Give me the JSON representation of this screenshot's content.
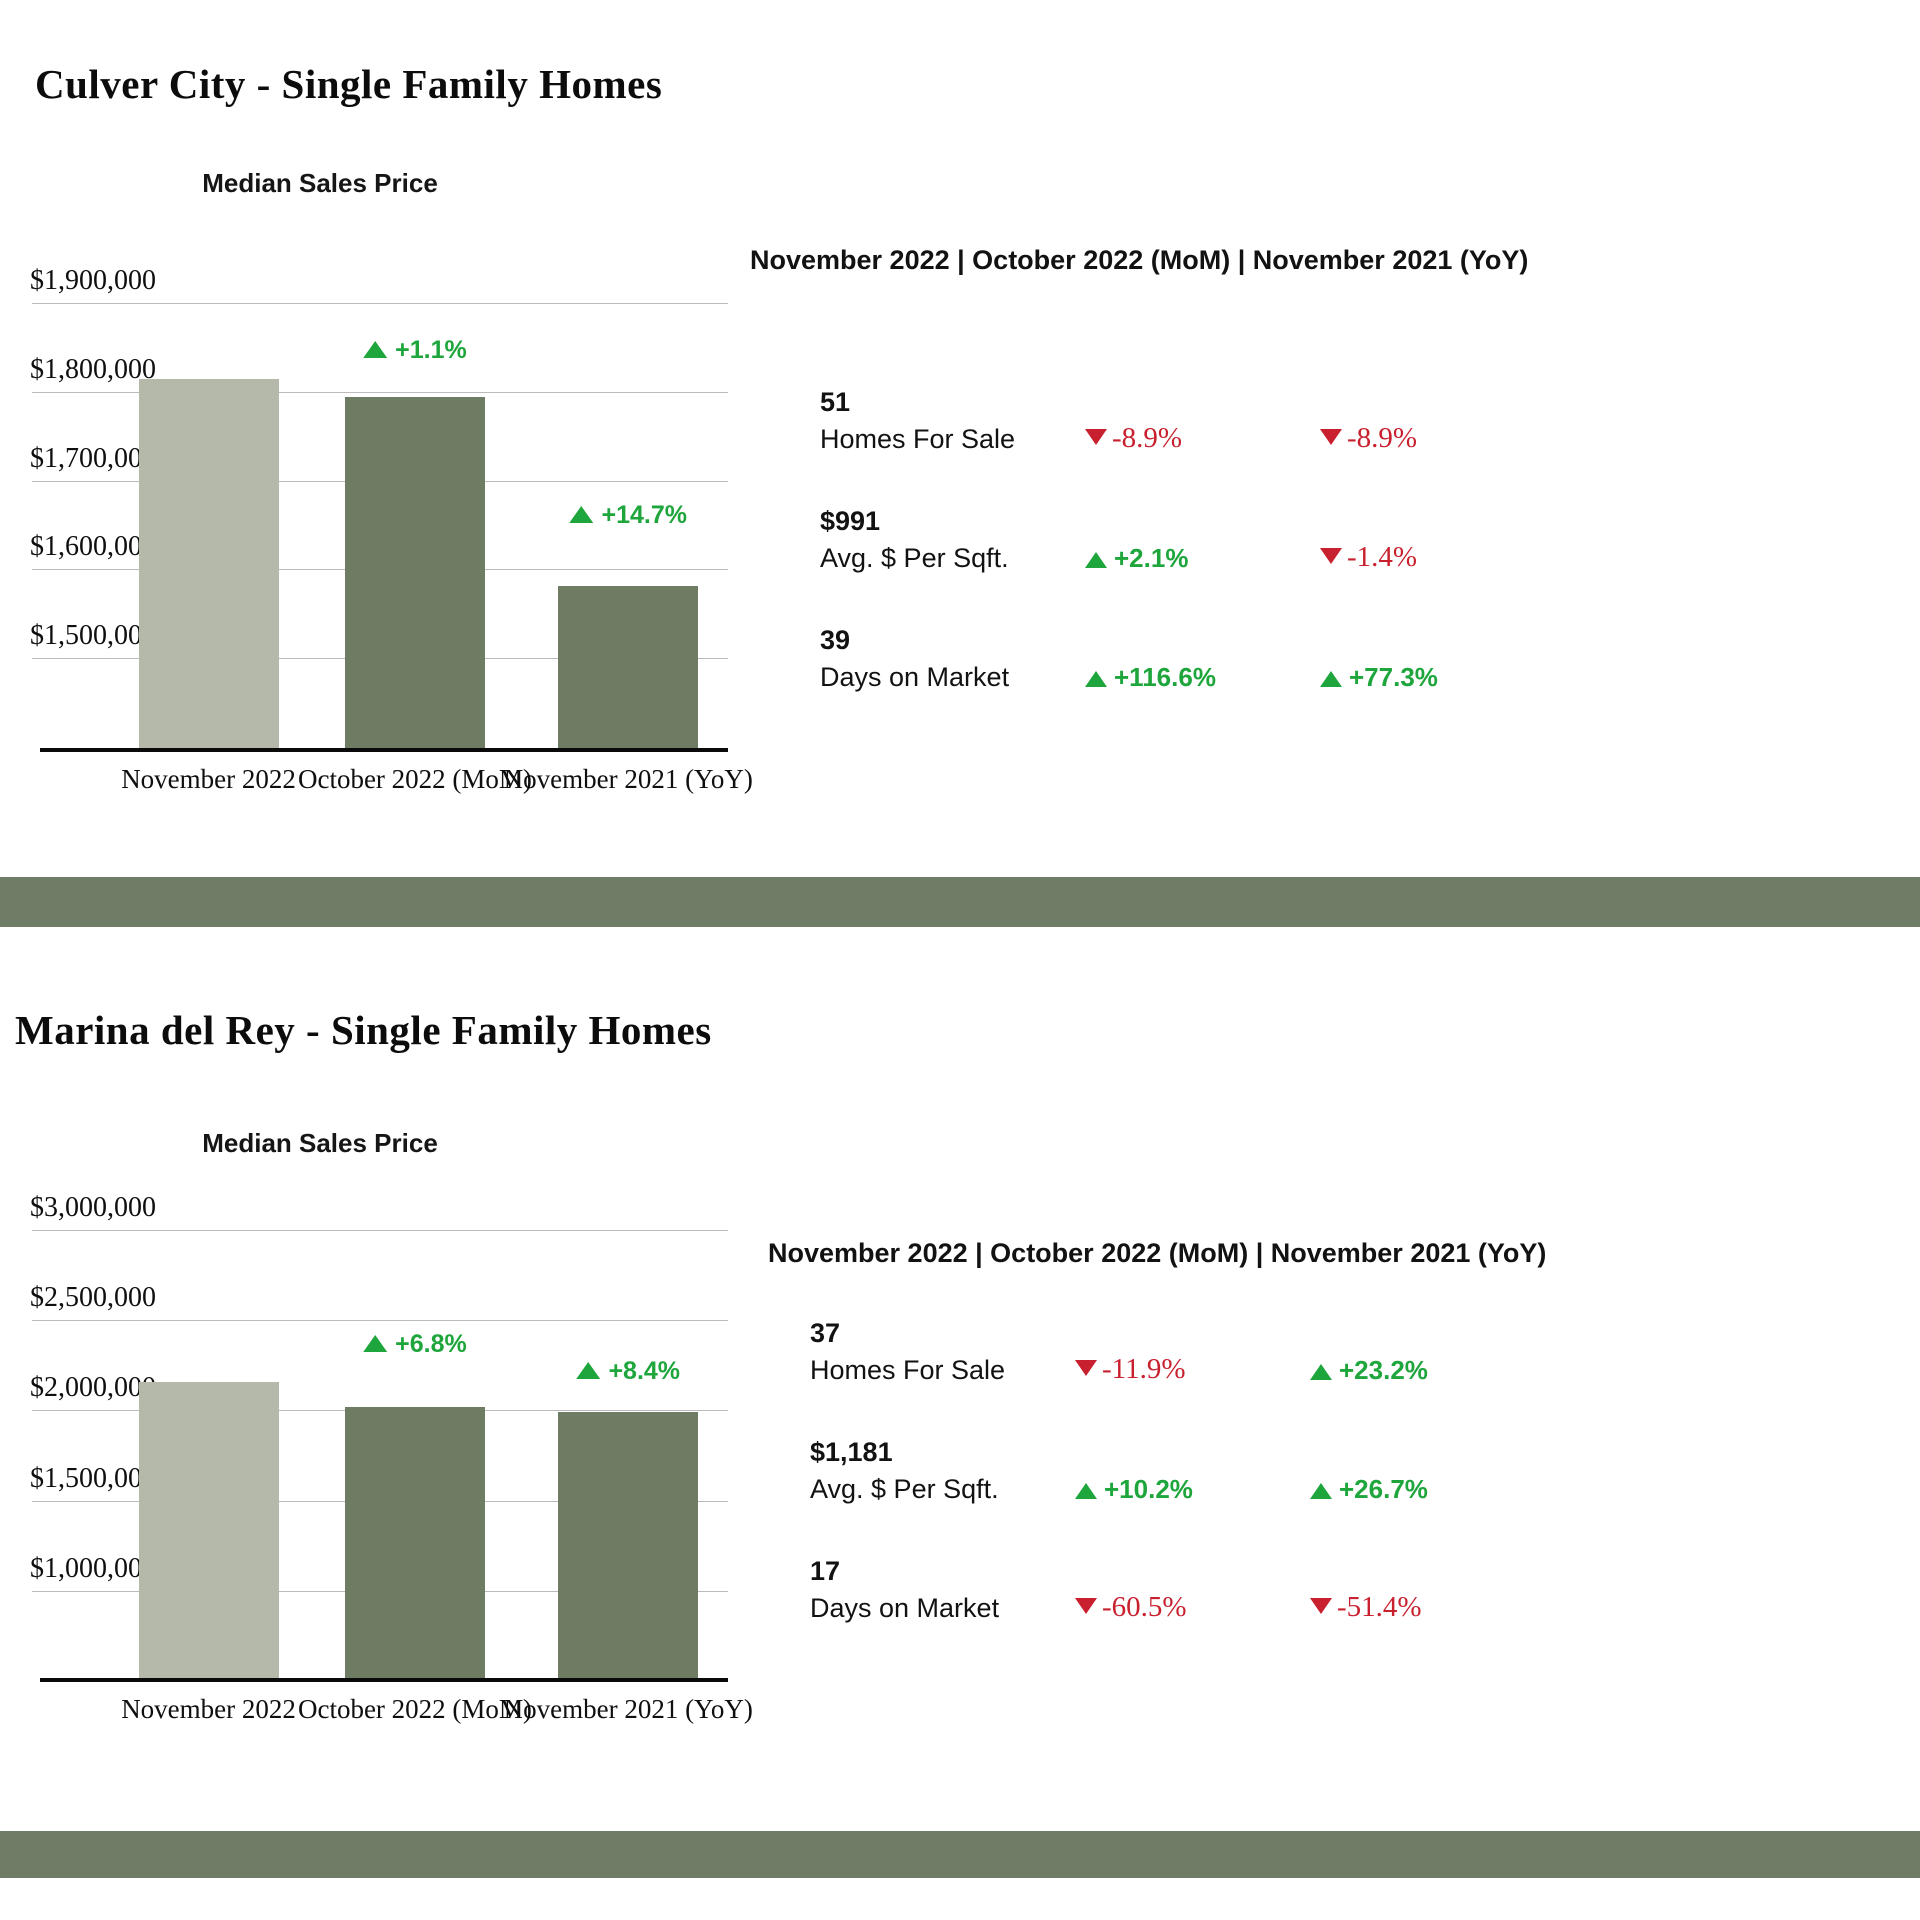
{
  "colors": {
    "accent_band": "#6F7D66",
    "bar_current": "#B5B9A9",
    "bar_compare": "#6F7C64",
    "positive_green": "#1EA63C",
    "negative_red": "#C8202E"
  },
  "chart_data": [
    {
      "type": "bar",
      "title": "Median Sales Price",
      "section": "Culver City - Single Family Homes",
      "categories": [
        "November 2022",
        "October 2022 (MoM)",
        "November 2021 (YoY)"
      ],
      "values": [
        1815000,
        1795000,
        1582500
      ],
      "bar_colors": [
        "#B5B9A9",
        "#6F7C64",
        "#6F7C64"
      ],
      "annotations": [
        null,
        "+1.1%",
        "+14.7%"
      ],
      "annotation_offsets": [
        0,
        34,
        58
      ],
      "ylim": [
        1400000,
        2000000
      ],
      "yticks": [
        {
          "value": 1900000,
          "label": "$1,900,000"
        },
        {
          "value": 1800000,
          "label": "$1,800,000"
        },
        {
          "value": 1700000,
          "label": "$1,700,000"
        },
        {
          "value": 1600000,
          "label": "$1,600,000"
        },
        {
          "value": 1500000,
          "label": "$1,500,000"
        }
      ],
      "grid": true,
      "legend": false
    },
    {
      "type": "bar",
      "title": "Median Sales Price",
      "section": "Marina del Rey - Single Family Homes",
      "categories": [
        "November 2022",
        "October 2022 (MoM)",
        "November 2021 (YoY)"
      ],
      "values": [
        2162500,
        2025000,
        1995000
      ],
      "bar_colors": [
        "#B5B9A9",
        "#6F7C64",
        "#6F7C64"
      ],
      "annotations": [
        null,
        "+6.8%",
        "+8.4%"
      ],
      "annotation_offsets": [
        0,
        50,
        28
      ],
      "ylim": [
        525000,
        3170000
      ],
      "yticks": [
        {
          "value": 3000000,
          "label": "$3,000,000"
        },
        {
          "value": 2500000,
          "label": "$2,500,000"
        },
        {
          "value": 2000000,
          "label": "$2,000,000"
        },
        {
          "value": 1500000,
          "label": "$1,500,000"
        },
        {
          "value": 1000000,
          "label": "$1,000,000"
        }
      ],
      "grid": true,
      "legend": false
    }
  ],
  "sections": [
    {
      "title": "Culver City - Single Family Homes",
      "chart_title": "Median Sales Price",
      "panel": {
        "header": "November 2022 | October 2022 (MoM) | November 2021 (YoY)",
        "rows": [
          {
            "value": "51",
            "label": "Homes For Sale",
            "mom": {
              "text": "-8.9%",
              "dir": "down",
              "tone": "red"
            },
            "yoy": {
              "text": "-8.9%",
              "dir": "down",
              "tone": "red"
            }
          },
          {
            "value": "$991",
            "label": "Avg. $ Per Sqft.",
            "mom": {
              "text": "+2.1%",
              "dir": "up",
              "tone": "green"
            },
            "yoy": {
              "text": "-1.4%",
              "dir": "down",
              "tone": "red"
            }
          },
          {
            "value": "39",
            "label": "Days on Market",
            "mom": {
              "text": "+116.6%",
              "dir": "up",
              "tone": "green"
            },
            "yoy": {
              "text": "+77.3%",
              "dir": "up",
              "tone": "green"
            }
          }
        ]
      }
    },
    {
      "title": "Marina del Rey - Single Family Homes",
      "chart_title": "Median Sales Price",
      "panel": {
        "header": "November 2022 | October 2022 (MoM) | November 2021 (YoY)",
        "rows": [
          {
            "value": "37",
            "label": "Homes For Sale",
            "mom": {
              "text": "-11.9%",
              "dir": "down",
              "tone": "red"
            },
            "yoy": {
              "text": "+23.2%",
              "dir": "up",
              "tone": "green"
            }
          },
          {
            "value": "$1,181",
            "label": "Avg. $ Per Sqft.",
            "mom": {
              "text": "+10.2%",
              "dir": "up",
              "tone": "green"
            },
            "yoy": {
              "text": "+26.7%",
              "dir": "up",
              "tone": "green"
            }
          },
          {
            "value": "17",
            "label": "Days on Market",
            "mom": {
              "text": "-60.5%",
              "dir": "down",
              "tone": "red"
            },
            "yoy": {
              "text": "-51.4%",
              "dir": "down",
              "tone": "red"
            }
          }
        ]
      }
    }
  ]
}
